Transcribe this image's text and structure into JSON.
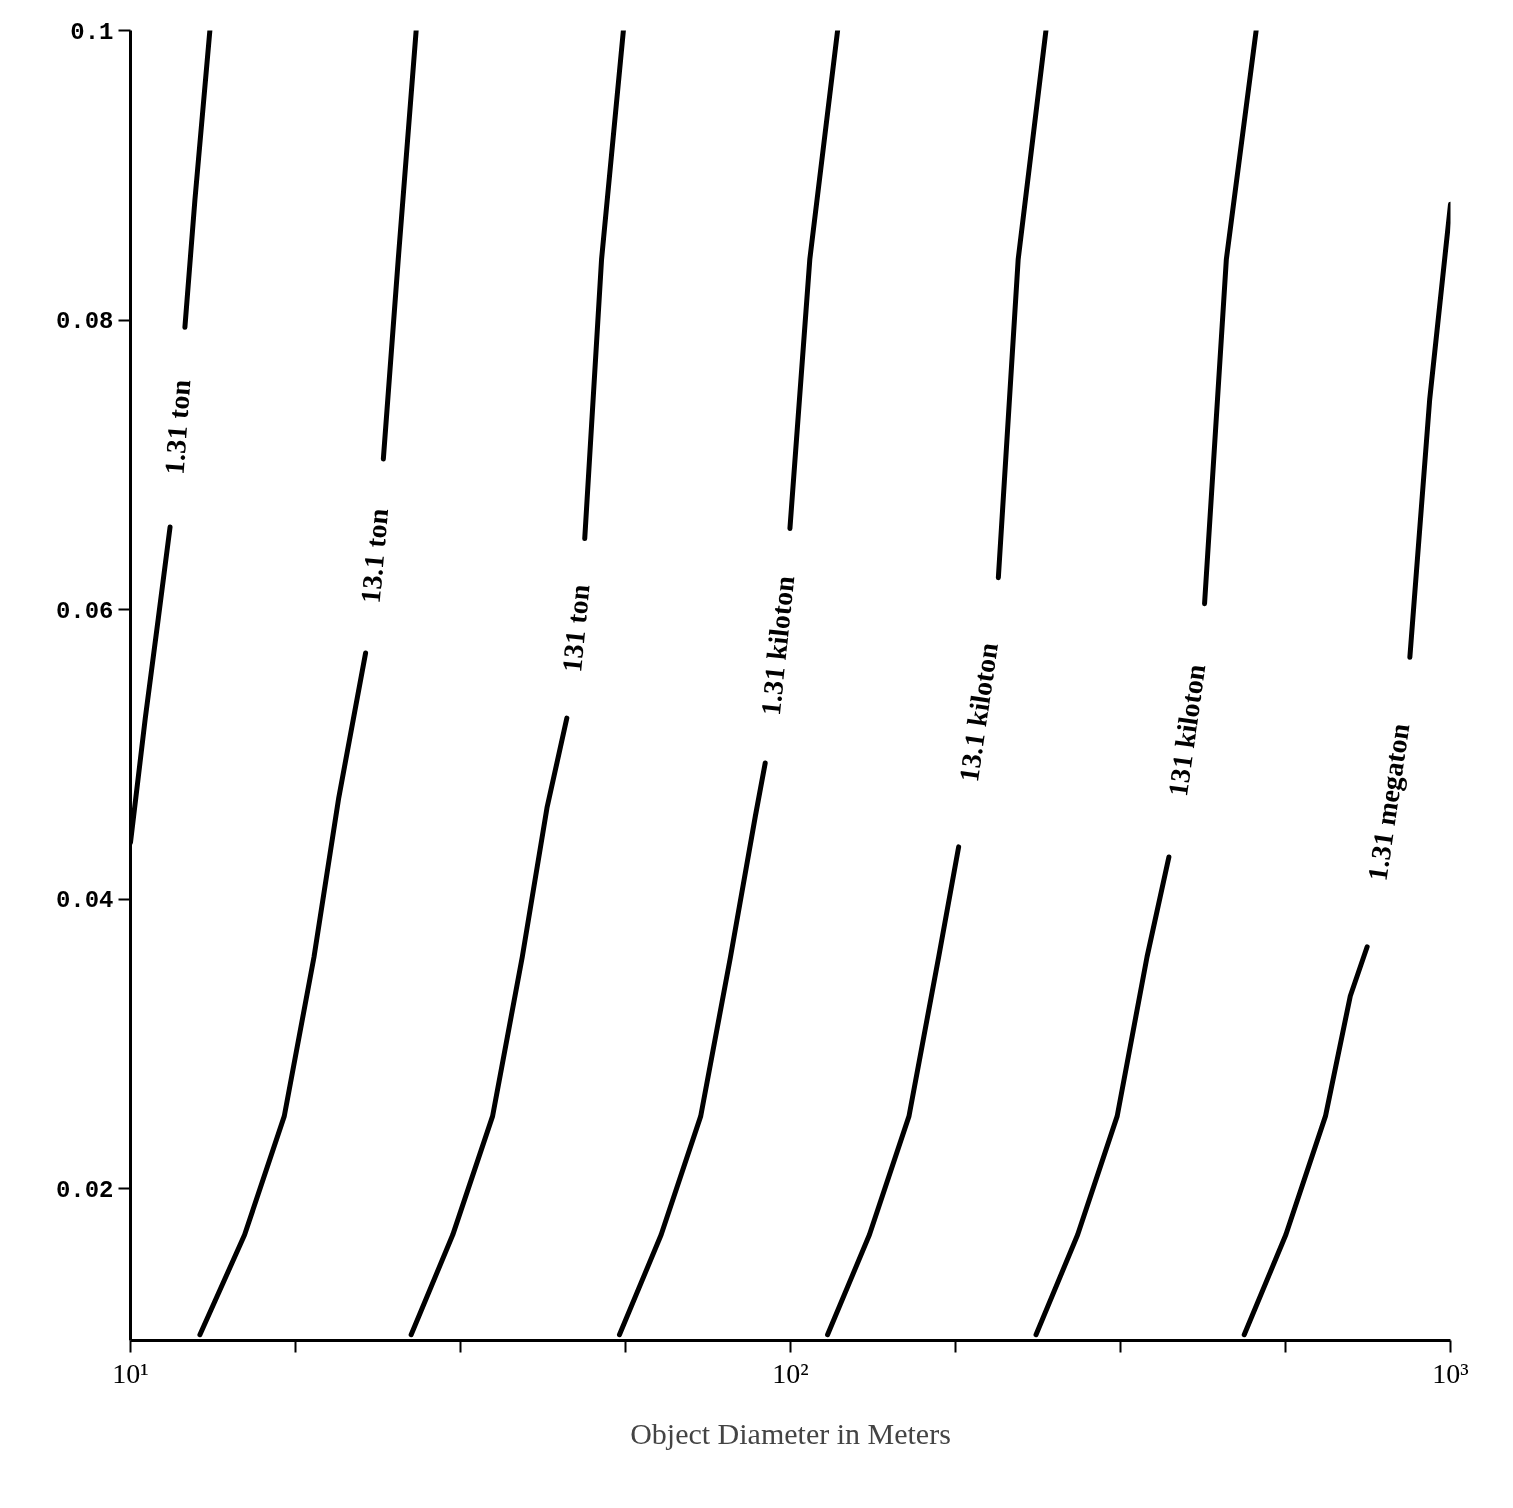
{
  "chart_data": {
    "type": "line",
    "xlabel": "Object Diameter in Meters",
    "log": "x",
    "grid": false,
    "marker": "none",
    "line_style": "solid",
    "xlim": [
      10,
      1000
    ],
    "ylim": [
      0.0095,
      0.1
    ],
    "xticks": [
      {
        "value": 10,
        "label": "10¹"
      },
      {
        "value": 17.78,
        "label": null
      },
      {
        "value": 31.62,
        "label": null
      },
      {
        "value": 56.23,
        "label": null
      },
      {
        "value": 100,
        "label": "10²"
      },
      {
        "value": 177.8,
        "label": null
      },
      {
        "value": 316.2,
        "label": null
      },
      {
        "value": 562.3,
        "label": null
      },
      {
        "value": 1000,
        "label": "10³"
      }
    ],
    "yticks": [
      0.02,
      0.04,
      0.06,
      0.08,
      0.1
    ],
    "series": [
      {
        "name": "1.31 ton",
        "color": "#000000",
        "x": [
          10.0,
          10.53,
          11.02,
          11.48,
          null,
          12.09,
          12.52,
          13.19
        ],
        "values": [
          0.0439,
          0.0525,
          0.0594,
          0.0657,
          null,
          0.0795,
          0.0883,
          0.1
        ]
      },
      {
        "name": "13.1 ton",
        "color": "#000000",
        "x": [
          12.74,
          14.89,
          17.1,
          18.97,
          20.68,
          22.71,
          null,
          24.16,
          25.45,
          27.09
        ],
        "values": [
          0.0099,
          0.0168,
          0.025,
          0.036,
          0.047,
          0.057,
          null,
          0.0704,
          0.0842,
          0.1
        ]
      },
      {
        "name": "131 ton",
        "color": "#000000",
        "x": [
          26.62,
          30.78,
          35.37,
          39.23,
          42.76,
          45.83,
          null,
          48.78,
          51.73,
          55.82
        ],
        "values": [
          0.0099,
          0.0168,
          0.025,
          0.036,
          0.0463,
          0.0525,
          null,
          0.0649,
          0.0842,
          0.1
        ]
      },
      {
        "name": "1.31 kiloton",
        "color": "#000000",
        "x": [
          55.06,
          63.68,
          73.11,
          81.11,
          88.44,
          91.56,
          null,
          99.8,
          106.97,
          117.86
        ],
        "values": [
          0.0099,
          0.0168,
          0.025,
          0.036,
          0.0457,
          0.0494,
          null,
          0.0656,
          0.0842,
          0.1
        ]
      },
      {
        "name": "13.1 kiloton",
        "color": "#000000",
        "x": [
          113.8,
          131.7,
          151.2,
          167.7,
          179.8,
          null,
          206.5,
          221.3,
          243.8
        ],
        "values": [
          0.0099,
          0.0168,
          0.025,
          0.036,
          0.0436,
          null,
          0.0622,
          0.0842,
          0.1
        ]
      },
      {
        "name": "131 kiloton",
        "color": "#000000",
        "x": [
          235.5,
          272.3,
          312.6,
          346.9,
          374.4,
          null,
          424.0,
          457.5,
          507.6
        ],
        "values": [
          0.0099,
          0.0168,
          0.025,
          0.036,
          0.0429,
          null,
          0.0604,
          0.0842,
          0.1
        ]
      },
      {
        "name": "1.31 megaton",
        "color": "#000000",
        "x": [
          486.9,
          563.0,
          646.5,
          705.0,
          747.7,
          null,
          867.8,
          929.9,
          1000
        ],
        "values": [
          0.0099,
          0.0168,
          0.025,
          0.0333,
          0.0367,
          null,
          0.0567,
          0.0745,
          0.088
        ]
      }
    ]
  }
}
